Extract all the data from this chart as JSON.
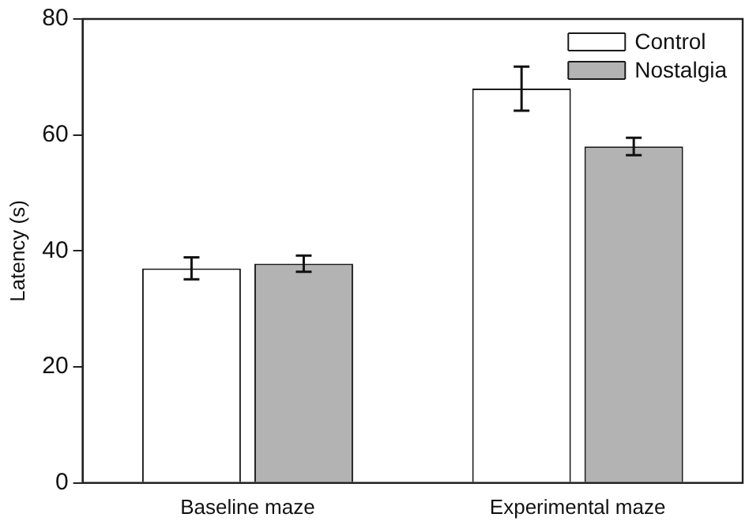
{
  "chart_data": {
    "type": "bar",
    "ylabel": "Latency (s)",
    "categories": [
      "Baseline maze",
      "Experimental maze"
    ],
    "series": [
      {
        "name": "Control",
        "color": "#ffffff",
        "values": [
          37.0,
          68.0
        ],
        "errors": [
          1.9,
          3.8
        ]
      },
      {
        "name": "Nostalgia",
        "color": "#b3b3b3",
        "values": [
          37.8,
          58.0
        ],
        "errors": [
          1.4,
          1.5
        ]
      }
    ],
    "ylim": [
      0,
      80
    ],
    "yticks": [
      0,
      20,
      40,
      60,
      80
    ],
    "grid": false,
    "legend": "top right"
  }
}
